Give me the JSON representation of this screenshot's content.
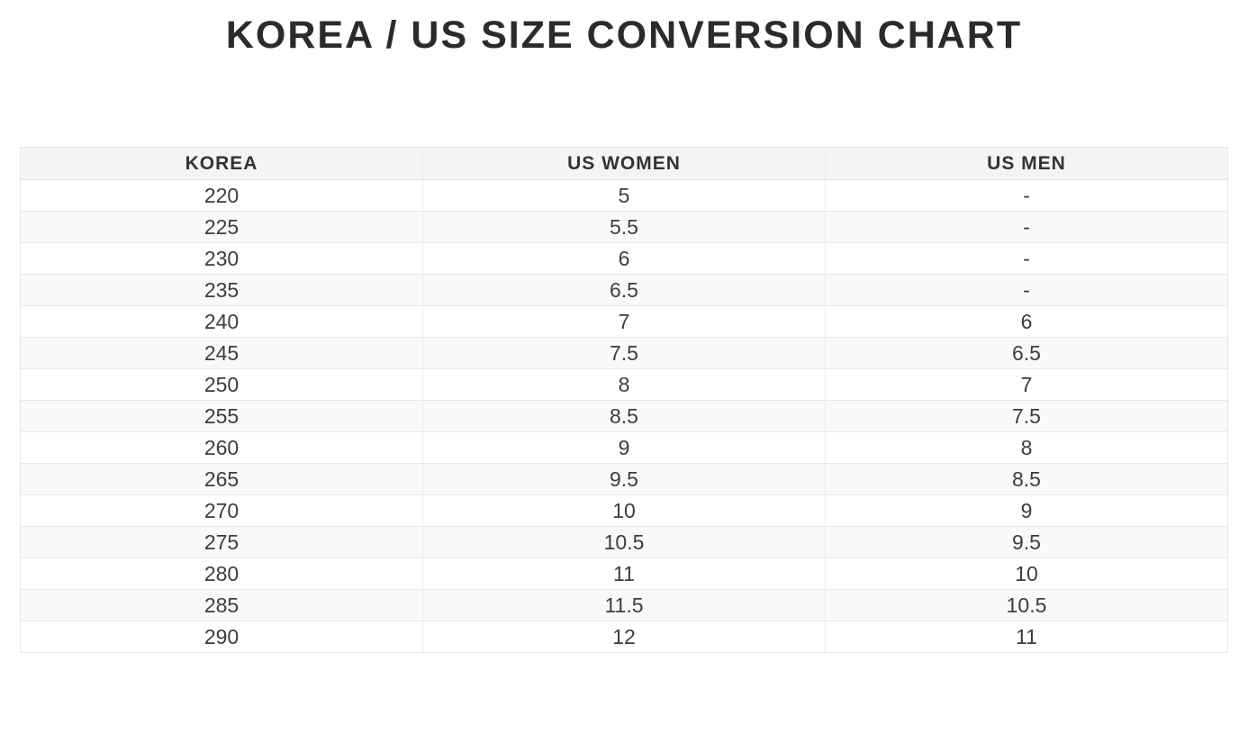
{
  "title": "KOREA / US SIZE CONVERSION CHART",
  "table": {
    "headers": [
      "KOREA",
      "US WOMEN",
      "US MEN"
    ],
    "rows": [
      [
        "220",
        "5",
        "-"
      ],
      [
        "225",
        "5.5",
        "-"
      ],
      [
        "230",
        "6",
        "-"
      ],
      [
        "235",
        "6.5",
        "-"
      ],
      [
        "240",
        "7",
        "6"
      ],
      [
        "245",
        "7.5",
        "6.5"
      ],
      [
        "250",
        "8",
        "7"
      ],
      [
        "255",
        "8.5",
        "7.5"
      ],
      [
        "260",
        "9",
        "8"
      ],
      [
        "265",
        "9.5",
        "8.5"
      ],
      [
        "270",
        "10",
        "9"
      ],
      [
        "275",
        "10.5",
        "9.5"
      ],
      [
        "280",
        "11",
        "10"
      ],
      [
        "285",
        "11.5",
        "10.5"
      ],
      [
        "290",
        "12",
        "11"
      ]
    ]
  },
  "chart_data": {
    "type": "table",
    "title": "KOREA / US SIZE CONVERSION CHART",
    "columns": [
      "KOREA",
      "US WOMEN",
      "US MEN"
    ],
    "rows": [
      [
        "220",
        "5",
        "-"
      ],
      [
        "225",
        "5.5",
        "-"
      ],
      [
        "230",
        "6",
        "-"
      ],
      [
        "235",
        "6.5",
        "-"
      ],
      [
        "240",
        "7",
        "6"
      ],
      [
        "245",
        "7.5",
        "6.5"
      ],
      [
        "250",
        "8",
        "7"
      ],
      [
        "255",
        "8.5",
        "7.5"
      ],
      [
        "260",
        "9",
        "8"
      ],
      [
        "265",
        "9.5",
        "8.5"
      ],
      [
        "270",
        "10",
        "9"
      ],
      [
        "275",
        "10.5",
        "9.5"
      ],
      [
        "280",
        "11",
        "10"
      ],
      [
        "285",
        "11.5",
        "10.5"
      ],
      [
        "290",
        "12",
        "11"
      ]
    ]
  },
  "colors": {
    "title_text": "#2b2b2b",
    "header_bg": "#f4f4f4",
    "header_text": "#333333",
    "row_alt_bg": "#f9f9f9",
    "cell_text": "#3d3d3d",
    "border": "#e6e6e6"
  }
}
